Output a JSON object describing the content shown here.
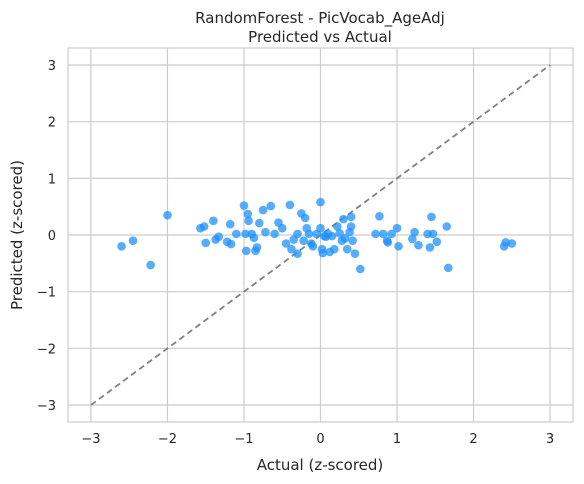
{
  "chart_data": {
    "type": "scatter",
    "title_line1": "RandomForest - PicVocab_AgeAdj",
    "title_line2": "Predicted vs Actual",
    "xlabel": "Actual (z-scored)",
    "ylabel": "Predicted (z-scored)",
    "xlim": [
      -3.3,
      3.3
    ],
    "ylim": [
      -3.3,
      3.3
    ],
    "xticks": [
      -3,
      -2,
      -1,
      0,
      1,
      2,
      3
    ],
    "yticks": [
      -3,
      -2,
      -1,
      0,
      1,
      2,
      3
    ],
    "xtick_labels": [
      "−3",
      "−2",
      "−1",
      "0",
      "1",
      "2",
      "3"
    ],
    "ytick_labels": [
      "−3",
      "−2",
      "−1",
      "0",
      "1",
      "2",
      "3"
    ],
    "grid": true,
    "point_color": "#1E90FF",
    "reference_line": {
      "x": [
        -3,
        3
      ],
      "y": [
        -3,
        3
      ],
      "style": "dashed",
      "color": "#808080"
    },
    "points": [
      [
        -2.6,
        -0.2
      ],
      [
        -2.45,
        -0.1
      ],
      [
        -2.22,
        -0.53
      ],
      [
        -2.0,
        0.35
      ],
      [
        -1.57,
        0.12
      ],
      [
        -1.52,
        0.15
      ],
      [
        -1.5,
        -0.14
      ],
      [
        -1.4,
        0.25
      ],
      [
        -1.37,
        -0.08
      ],
      [
        -1.33,
        -0.03
      ],
      [
        -1.22,
        -0.12
      ],
      [
        -1.18,
        0.19
      ],
      [
        -1.17,
        -0.16
      ],
      [
        -1.1,
        0.02
      ],
      [
        -1.0,
        0.52
      ],
      [
        -0.98,
        0.02
      ],
      [
        -0.97,
        -0.28
      ],
      [
        -0.95,
        0.37
      ],
      [
        -0.94,
        0.25
      ],
      [
        -0.9,
        0.02
      ],
      [
        -0.87,
        -0.05
      ],
      [
        -0.85,
        -0.28
      ],
      [
        -0.83,
        -0.22
      ],
      [
        -0.8,
        0.21
      ],
      [
        -0.75,
        0.44
      ],
      [
        -0.72,
        0.05
      ],
      [
        -0.65,
        0.51
      ],
      [
        -0.6,
        0.02
      ],
      [
        -0.55,
        0.22
      ],
      [
        -0.5,
        0.12
      ],
      [
        -0.45,
        -0.15
      ],
      [
        -0.4,
        0.53
      ],
      [
        -0.38,
        -0.25
      ],
      [
        -0.35,
        -0.08
      ],
      [
        -0.3,
        -0.33
      ],
      [
        -0.3,
        0.02
      ],
      [
        -0.25,
        0.38
      ],
      [
        -0.22,
        -0.1
      ],
      [
        -0.2,
        0.3
      ],
      [
        -0.18,
        0.12
      ],
      [
        -0.15,
        0.02
      ],
      [
        -0.12,
        -0.15
      ],
      [
        -0.1,
        -0.2
      ],
      [
        -0.05,
        0.02
      ],
      [
        0.0,
        0.58
      ],
      [
        0.0,
        0.12
      ],
      [
        0.02,
        -0.25
      ],
      [
        0.03,
        -0.32
      ],
      [
        0.05,
        -0.02
      ],
      [
        0.07,
        -0.03
      ],
      [
        0.1,
        0.02
      ],
      [
        0.12,
        -0.3
      ],
      [
        0.15,
        -0.02
      ],
      [
        0.18,
        -0.25
      ],
      [
        0.22,
        0.15
      ],
      [
        0.25,
        0.03
      ],
      [
        0.28,
        -0.1
      ],
      [
        0.3,
        0.28
      ],
      [
        0.32,
        -0.06
      ],
      [
        0.35,
        -0.25
      ],
      [
        0.38,
        0.05
      ],
      [
        0.4,
        0.15
      ],
      [
        0.4,
        0.32
      ],
      [
        0.42,
        -0.1
      ],
      [
        0.45,
        -0.33
      ],
      [
        0.52,
        -0.6
      ],
      [
        0.72,
        0.02
      ],
      [
        0.77,
        0.33
      ],
      [
        0.82,
        0.02
      ],
      [
        0.87,
        -0.1
      ],
      [
        0.88,
        -0.13
      ],
      [
        0.93,
        0.02
      ],
      [
        1.0,
        0.12
      ],
      [
        1.02,
        -0.2
      ],
      [
        1.2,
        -0.07
      ],
      [
        1.23,
        0.05
      ],
      [
        1.28,
        -0.18
      ],
      [
        1.4,
        0.02
      ],
      [
        1.43,
        -0.22
      ],
      [
        1.45,
        0.32
      ],
      [
        1.47,
        0.02
      ],
      [
        1.52,
        -0.12
      ],
      [
        1.65,
        0.15
      ],
      [
        1.67,
        -0.58
      ],
      [
        2.4,
        -0.2
      ],
      [
        2.42,
        -0.13
      ],
      [
        2.5,
        -0.15
      ]
    ]
  }
}
